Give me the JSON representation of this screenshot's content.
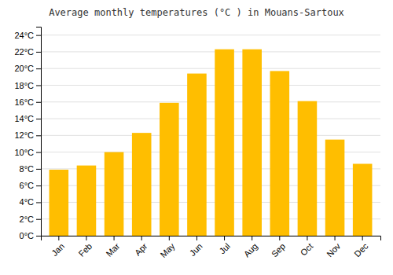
{
  "chart_data": {
    "type": "bar",
    "title": "Average monthly temperatures (°C ) in Mouans-Sartoux",
    "categories": [
      "Jan",
      "Feb",
      "Mar",
      "Apr",
      "May",
      "Jun",
      "Jul",
      "Aug",
      "Sep",
      "Oct",
      "Nov",
      "Dec"
    ],
    "values": [
      7.9,
      8.4,
      10.0,
      12.3,
      15.9,
      19.4,
      22.3,
      22.3,
      19.7,
      16.1,
      11.5,
      8.6
    ],
    "color": "#FFBE00",
    "ylim": [
      0,
      25
    ],
    "yticks": [
      {
        "value": 0,
        "label": "0°C"
      },
      {
        "value": 2,
        "label": "2°C"
      },
      {
        "value": 4,
        "label": "4°C"
      },
      {
        "value": 6,
        "label": "6°C"
      },
      {
        "value": 8,
        "label": "8°C"
      },
      {
        "value": 10,
        "label": "10°C"
      },
      {
        "value": 12,
        "label": "12°C"
      },
      {
        "value": 14,
        "label": "14°C"
      },
      {
        "value": 16,
        "label": "16°C"
      },
      {
        "value": 18,
        "label": "18°C"
      },
      {
        "value": 20,
        "label": "20°C"
      },
      {
        "value": 22,
        "label": "22°C"
      },
      {
        "value": 24,
        "label": "24°C"
      }
    ],
    "grid": true
  }
}
